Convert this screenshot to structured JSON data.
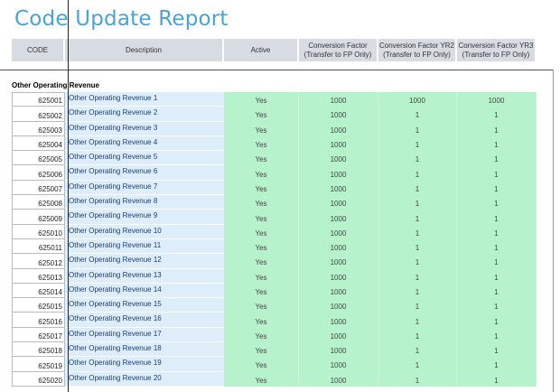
{
  "report": {
    "title": "Code Update Report"
  },
  "columns": [
    {
      "label": "CODE",
      "width": 59
    },
    {
      "label": "Description",
      "width": 176
    },
    {
      "label": "Active",
      "width": 83
    },
    {
      "label": "Conversion Factor\n(Transfer to FP Only)",
      "width": 88
    },
    {
      "label": "Conversion Factor YR2\n(Transfer to FP Only)",
      "width": 87
    },
    {
      "label": "Conversion Factor YR3\n(Transfer to FP Only)",
      "width": 88
    }
  ],
  "group": {
    "title": "Other Operating Revenue"
  },
  "rows": [
    {
      "code": "625001",
      "description": "Other Operating Revenue 1",
      "active": "Yes",
      "cf": "1000",
      "cf_yr2": "1000",
      "cf_yr3": "1000"
    },
    {
      "code": "625002",
      "description": "Other Operating Revenue 2",
      "active": "Yes",
      "cf": "1000",
      "cf_yr2": "1",
      "cf_yr3": "1"
    },
    {
      "code": "625003",
      "description": "Other Operating Revenue 3",
      "active": "Yes",
      "cf": "1000",
      "cf_yr2": "1",
      "cf_yr3": "1"
    },
    {
      "code": "625004",
      "description": "Other Operating Revenue 4",
      "active": "Yes",
      "cf": "1000",
      "cf_yr2": "1",
      "cf_yr3": "1"
    },
    {
      "code": "625005",
      "description": "Other Operating Revenue 5",
      "active": "Yes",
      "cf": "1000",
      "cf_yr2": "1",
      "cf_yr3": "1"
    },
    {
      "code": "625006",
      "description": "Other Operating Revenue 6",
      "active": "Yes",
      "cf": "1000",
      "cf_yr2": "1",
      "cf_yr3": "1"
    },
    {
      "code": "625007",
      "description": "Other Operating Revenue 7",
      "active": "Yes",
      "cf": "1000",
      "cf_yr2": "1",
      "cf_yr3": "1"
    },
    {
      "code": "625008",
      "description": "Other Operating Revenue 8",
      "active": "Yes",
      "cf": "1000",
      "cf_yr2": "1",
      "cf_yr3": "1"
    },
    {
      "code": "625009",
      "description": "Other Operating Revenue 9",
      "active": "Yes",
      "cf": "1000",
      "cf_yr2": "1",
      "cf_yr3": "1"
    },
    {
      "code": "625010",
      "description": "Other Operating Revenue 10",
      "active": "Yes",
      "cf": "1000",
      "cf_yr2": "1",
      "cf_yr3": "1"
    },
    {
      "code": "625011",
      "description": "Other Operating Revenue 11",
      "active": "Yes",
      "cf": "1000",
      "cf_yr2": "1",
      "cf_yr3": "1"
    },
    {
      "code": "625012",
      "description": "Other Operating Revenue 12",
      "active": "Yes",
      "cf": "1000",
      "cf_yr2": "1",
      "cf_yr3": "1"
    },
    {
      "code": "625013",
      "description": "Other Operating Revenue 13",
      "active": "Yes",
      "cf": "1000",
      "cf_yr2": "1",
      "cf_yr3": "1"
    },
    {
      "code": "625014",
      "description": "Other Operating Revenue 14",
      "active": "Yes",
      "cf": "1000",
      "cf_yr2": "1",
      "cf_yr3": "1"
    },
    {
      "code": "625015",
      "description": "Other Operating Revenue 15",
      "active": "Yes",
      "cf": "1000",
      "cf_yr2": "1",
      "cf_yr3": "1"
    },
    {
      "code": "625016",
      "description": "Other Operating Revenue 16",
      "active": "Yes",
      "cf": "1000",
      "cf_yr2": "1",
      "cf_yr3": "1"
    },
    {
      "code": "625017",
      "description": "Other Operating Revenue 17",
      "active": "Yes",
      "cf": "1000",
      "cf_yr2": "1",
      "cf_yr3": "1"
    },
    {
      "code": "625018",
      "description": "Other Operating Revenue 18",
      "active": "Yes",
      "cf": "1000",
      "cf_yr2": "1",
      "cf_yr3": "1"
    },
    {
      "code": "625019",
      "description": "Other Operating Revenue 19",
      "active": "Yes",
      "cf": "1000",
      "cf_yr2": "1",
      "cf_yr3": "1"
    },
    {
      "code": "625020",
      "description": "Other Operating Revenue 20",
      "active": "Yes",
      "cf": "1000",
      "cf_yr2": "1",
      "cf_yr3": "1"
    }
  ]
}
